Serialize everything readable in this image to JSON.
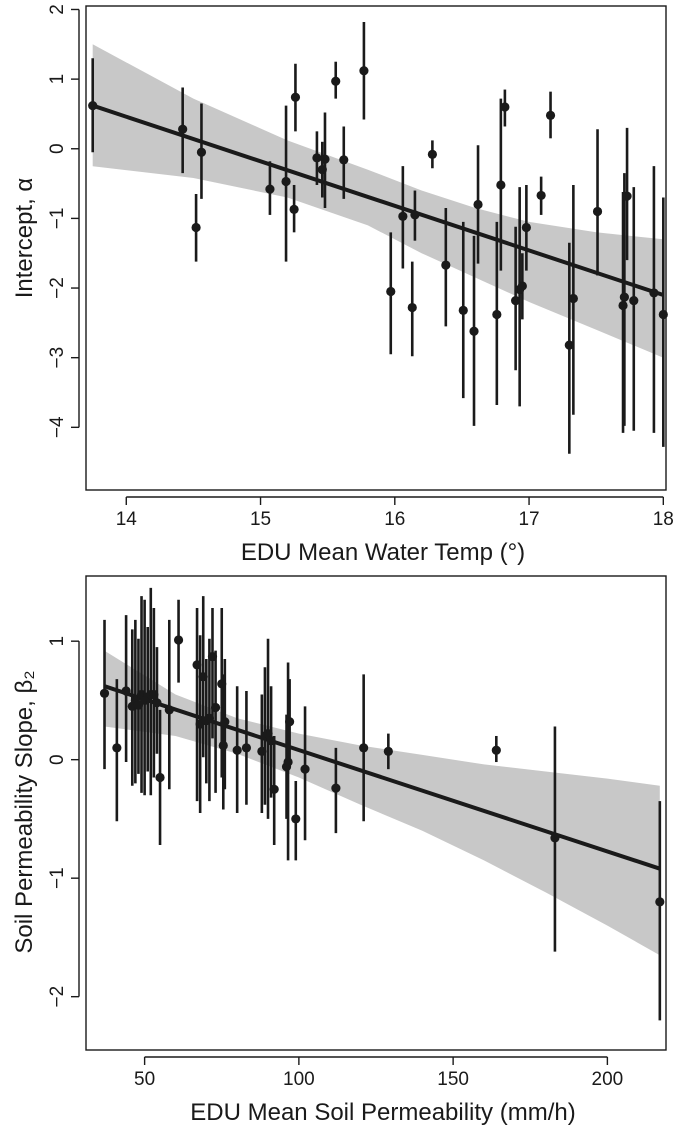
{
  "chart_data": [
    {
      "type": "scatter",
      "title": "",
      "xlabel": "EDU Mean Water Temp (°)",
      "ylabel": "Intercept, α",
      "xlim": [
        13.7,
        18.02
      ],
      "ylim": [
        -4.9,
        2.05
      ],
      "x_ticks": [
        14,
        15,
        16,
        17,
        18
      ],
      "y_ticks": [
        2,
        1,
        0,
        -1,
        -2,
        -3,
        -4
      ],
      "grid": false,
      "regression": {
        "x0": 13.75,
        "y0": 0.62,
        "x1": 18.0,
        "y1": -2.1
      },
      "band": {
        "x": [
          13.75,
          14.5,
          15.2,
          15.8,
          16.2,
          16.6,
          17.0,
          17.5,
          18.0
        ],
        "upper": [
          1.5,
          0.72,
          0.12,
          -0.3,
          -0.6,
          -0.85,
          -1.05,
          -1.2,
          -1.3
        ],
        "lower": [
          -0.25,
          -0.42,
          -0.7,
          -1.1,
          -1.5,
          -1.85,
          -2.2,
          -2.6,
          -3.0
        ]
      },
      "points": [
        {
          "x": 13.75,
          "y": 0.62,
          "lo": -0.05,
          "hi": 1.3
        },
        {
          "x": 14.42,
          "y": 0.28,
          "lo": -0.35,
          "hi": 0.88
        },
        {
          "x": 14.52,
          "y": -1.13,
          "lo": -1.62,
          "hi": -0.65
        },
        {
          "x": 14.56,
          "y": -0.05,
          "lo": -0.72,
          "hi": 0.65
        },
        {
          "x": 15.07,
          "y": -0.58,
          "lo": -0.95,
          "hi": -0.18
        },
        {
          "x": 15.19,
          "y": -0.47,
          "lo": -1.62,
          "hi": 0.62
        },
        {
          "x": 15.25,
          "y": -0.87,
          "lo": -1.2,
          "hi": -0.52
        },
        {
          "x": 15.26,
          "y": 0.74,
          "lo": 0.25,
          "hi": 1.22
        },
        {
          "x": 15.42,
          "y": -0.13,
          "lo": -0.52,
          "hi": 0.25
        },
        {
          "x": 15.46,
          "y": -0.3,
          "lo": -0.7,
          "hi": 0.1
        },
        {
          "x": 15.48,
          "y": -0.15,
          "lo": -0.85,
          "hi": 0.52
        },
        {
          "x": 15.56,
          "y": 0.97,
          "lo": 0.72,
          "hi": 1.25
        },
        {
          "x": 15.62,
          "y": -0.16,
          "lo": -0.72,
          "hi": 0.32
        },
        {
          "x": 15.77,
          "y": 1.12,
          "lo": 0.42,
          "hi": 1.82
        },
        {
          "x": 15.97,
          "y": -2.05,
          "lo": -2.95,
          "hi": -1.2
        },
        {
          "x": 16.06,
          "y": -0.97,
          "lo": -1.72,
          "hi": -0.25
        },
        {
          "x": 16.13,
          "y": -2.28,
          "lo": -2.98,
          "hi": -1.62
        },
        {
          "x": 16.15,
          "y": -0.95,
          "lo": -1.32,
          "hi": -0.6
        },
        {
          "x": 16.28,
          "y": -0.08,
          "lo": -0.28,
          "hi": 0.12
        },
        {
          "x": 16.38,
          "y": -1.67,
          "lo": -2.55,
          "hi": -0.85
        },
        {
          "x": 16.51,
          "y": -2.32,
          "lo": -3.58,
          "hi": -1.05
        },
        {
          "x": 16.59,
          "y": -2.62,
          "lo": -3.98,
          "hi": -1.25
        },
        {
          "x": 16.62,
          "y": -0.8,
          "lo": -1.65,
          "hi": 0.05
        },
        {
          "x": 16.76,
          "y": -2.38,
          "lo": -3.68,
          "hi": -1.05
        },
        {
          "x": 16.79,
          "y": -0.52,
          "lo": -1.75,
          "hi": 0.72
        },
        {
          "x": 16.82,
          "y": 0.6,
          "lo": 0.32,
          "hi": 0.85
        },
        {
          "x": 16.9,
          "y": -2.18,
          "lo": -3.18,
          "hi": -1.12
        },
        {
          "x": 16.93,
          "y": -2.02,
          "lo": -3.7,
          "hi": -0.55
        },
        {
          "x": 16.95,
          "y": -1.97,
          "lo": -2.45,
          "hi": -1.5
        },
        {
          "x": 16.98,
          "y": -1.13,
          "lo": -1.75,
          "hi": -0.52
        },
        {
          "x": 17.09,
          "y": -0.67,
          "lo": -0.95,
          "hi": -0.4
        },
        {
          "x": 17.16,
          "y": 0.48,
          "lo": 0.15,
          "hi": 0.82
        },
        {
          "x": 17.3,
          "y": -2.82,
          "lo": -4.38,
          "hi": -1.35
        },
        {
          "x": 17.33,
          "y": -2.15,
          "lo": -3.82,
          "hi": -0.52
        },
        {
          "x": 17.51,
          "y": -0.9,
          "lo": -1.82,
          "hi": 0.28
        },
        {
          "x": 17.7,
          "y": -2.25,
          "lo": -4.08,
          "hi": -0.62
        },
        {
          "x": 17.71,
          "y": -2.13,
          "lo": -3.98,
          "hi": -0.35
        },
        {
          "x": 17.73,
          "y": -0.68,
          "lo": -1.6,
          "hi": 0.3
        },
        {
          "x": 17.78,
          "y": -2.18,
          "lo": -4.05,
          "hi": -0.55
        },
        {
          "x": 17.93,
          "y": -2.07,
          "lo": -4.08,
          "hi": -0.25
        },
        {
          "x": 18.0,
          "y": -2.38,
          "lo": -4.28,
          "hi": -0.7
        }
      ]
    },
    {
      "type": "scatter",
      "title": "",
      "xlabel": "EDU Mean Soil Permeability (mm/h)",
      "ylabel": "Soil Permeability Slope, β₂",
      "xlim": [
        31,
        219
      ],
      "ylim": [
        -2.45,
        1.55
      ],
      "x_ticks": [
        50,
        100,
        150,
        200
      ],
      "y_ticks": [
        1,
        0,
        -1,
        -2
      ],
      "grid": false,
      "regression": {
        "x0": 37,
        "y0": 0.62,
        "x1": 217,
        "y1": -0.92
      },
      "band": {
        "x": [
          37,
          60,
          80,
          100,
          120,
          140,
          160,
          180,
          200,
          217
        ],
        "upper": [
          0.92,
          0.55,
          0.35,
          0.22,
          0.12,
          0.04,
          -0.04,
          -0.1,
          -0.16,
          -0.22
        ],
        "lower": [
          0.28,
          0.2,
          0.05,
          -0.15,
          -0.38,
          -0.6,
          -0.85,
          -1.12,
          -1.4,
          -1.65
        ]
      },
      "points": [
        {
          "x": 37,
          "y": 0.56,
          "lo": -0.08,
          "hi": 1.18
        },
        {
          "x": 41,
          "y": 0.1,
          "lo": -0.52,
          "hi": 0.68
        },
        {
          "x": 44,
          "y": 0.58,
          "lo": -0.02,
          "hi": 1.22
        },
        {
          "x": 46,
          "y": 0.45,
          "lo": -0.22,
          "hi": 1.1
        },
        {
          "x": 47,
          "y": 0.5,
          "lo": -0.2,
          "hi": 1.18
        },
        {
          "x": 48,
          "y": 0.46,
          "lo": -0.12,
          "hi": 1.02
        },
        {
          "x": 49,
          "y": 0.55,
          "lo": -0.28,
          "hi": 1.38
        },
        {
          "x": 50,
          "y": 0.5,
          "lo": -0.3,
          "hi": 1.35
        },
        {
          "x": 51,
          "y": 0.53,
          "lo": -0.1,
          "hi": 1.12
        },
        {
          "x": 52,
          "y": 0.55,
          "lo": -0.3,
          "hi": 1.45
        },
        {
          "x": 53,
          "y": 0.55,
          "lo": -0.15,
          "hi": 1.28
        },
        {
          "x": 54,
          "y": 0.48,
          "lo": 0.05,
          "hi": 0.95
        },
        {
          "x": 55,
          "y": -0.15,
          "lo": -0.72,
          "hi": 0.42
        },
        {
          "x": 58,
          "y": 0.42,
          "lo": -0.25,
          "hi": 1.18
        },
        {
          "x": 61,
          "y": 1.01,
          "lo": 0.65,
          "hi": 1.35
        },
        {
          "x": 67,
          "y": 0.8,
          "lo": -0.35,
          "hi": 1.28
        },
        {
          "x": 68,
          "y": 0.3,
          "lo": -0.45,
          "hi": 1.05
        },
        {
          "x": 69,
          "y": 0.7,
          "lo": 0.02,
          "hi": 1.38
        },
        {
          "x": 70,
          "y": 0.33,
          "lo": -0.2,
          "hi": 0.85
        },
        {
          "x": 71,
          "y": 0.35,
          "lo": -0.35,
          "hi": 1.02
        },
        {
          "x": 72,
          "y": 0.87,
          "lo": 0.18,
          "hi": 1.28
        },
        {
          "x": 73,
          "y": 0.44,
          "lo": -0.28,
          "hi": 0.92
        },
        {
          "x": 75,
          "y": 0.64,
          "lo": -0.15,
          "hi": 1.28
        },
        {
          "x": 75.5,
          "y": 0.12,
          "lo": -0.42,
          "hi": 0.72
        },
        {
          "x": 76,
          "y": 0.32,
          "lo": -0.25,
          "hi": 0.85
        },
        {
          "x": 80,
          "y": 0.08,
          "lo": -0.45,
          "hi": 0.62
        },
        {
          "x": 83,
          "y": 0.1,
          "lo": -0.38,
          "hi": 0.58
        },
        {
          "x": 88,
          "y": 0.07,
          "lo": -0.45,
          "hi": 0.55
        },
        {
          "x": 89,
          "y": 0.2,
          "lo": -0.38,
          "hi": 0.78
        },
        {
          "x": 90,
          "y": 0.22,
          "lo": -0.5,
          "hi": 1.02
        },
        {
          "x": 91,
          "y": 0.16,
          "lo": -0.32,
          "hi": 0.62
        },
        {
          "x": 92,
          "y": -0.25,
          "lo": -0.72,
          "hi": 0.2
        },
        {
          "x": 96,
          "y": -0.06,
          "lo": -0.5,
          "hi": 0.38
        },
        {
          "x": 96.5,
          "y": -0.02,
          "lo": -0.85,
          "hi": 0.82
        },
        {
          "x": 97,
          "y": 0.32,
          "lo": -0.05,
          "hi": 0.68
        },
        {
          "x": 99,
          "y": -0.5,
          "lo": -0.85,
          "hi": -0.18
        },
        {
          "x": 102,
          "y": -0.08,
          "lo": -0.68,
          "hi": 0.45
        },
        {
          "x": 112,
          "y": -0.24,
          "lo": -0.62,
          "hi": 0.1
        },
        {
          "x": 121,
          "y": 0.1,
          "lo": -0.52,
          "hi": 0.72
        },
        {
          "x": 129,
          "y": 0.07,
          "lo": -0.08,
          "hi": 0.22
        },
        {
          "x": 164,
          "y": 0.08,
          "lo": -0.02,
          "hi": 0.2
        },
        {
          "x": 183,
          "y": -0.66,
          "lo": -1.62,
          "hi": 0.28
        },
        {
          "x": 217,
          "y": -1.2,
          "lo": -2.2,
          "hi": -0.35
        }
      ]
    }
  ]
}
